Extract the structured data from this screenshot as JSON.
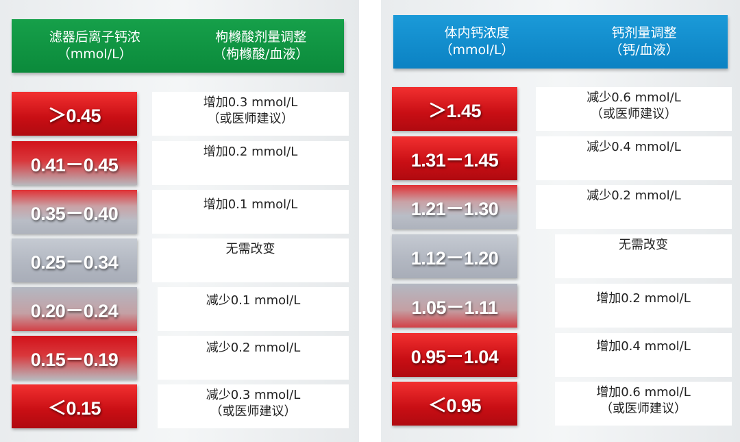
{
  "left_table": {
    "header": {
      "col1": [
        "滤器后离子钙浓",
        "（mmol/L）"
      ],
      "col2": [
        "枸橼酸剂量调整",
        "（枸橼酸/血液）"
      ]
    },
    "rows": [
      {
        "range": "＞0.45",
        "adjust": [
          "增加0.3 mmol/L",
          "（或医师建议）"
        ]
      },
      {
        "range": "0.41－0.45",
        "adjust": [
          "增加0.2 mmol/L",
          ""
        ]
      },
      {
        "range": "0.35－0.40",
        "adjust": [
          "增加0.1 mmol/L",
          ""
        ]
      },
      {
        "range": "0.25－0.34",
        "adjust": [
          "无需改变",
          ""
        ]
      },
      {
        "range": "0.20－0.24",
        "adjust": [
          "减少0.1 mmol/L",
          ""
        ]
      },
      {
        "range": "0.15－0.19",
        "adjust": [
          "减少0.2 mmol/L",
          ""
        ]
      },
      {
        "range": "＜0.15",
        "adjust": [
          "减少0.3 mmol/L",
          "（或医师建议）"
        ]
      }
    ]
  },
  "right_table": {
    "header": {
      "col1": [
        "体内钙浓度",
        "（mmol/L）"
      ],
      "col2": [
        "钙剂量调整",
        "（钙/血液）"
      ]
    },
    "rows": [
      {
        "range": "＞1.45",
        "adjust": [
          "减少0.6 mmol/L",
          "（或医师建议）"
        ]
      },
      {
        "range": "1.31－1.45",
        "adjust": [
          "减少0.4 mmol/L",
          ""
        ]
      },
      {
        "range": "1.21－1.30",
        "adjust": [
          "减少0.2 mmol/L",
          ""
        ]
      },
      {
        "range": "1.12－1.20",
        "adjust": [
          "无需改变",
          ""
        ]
      },
      {
        "range": "1.05－1.11",
        "adjust": [
          "增加0.2 mmol/L",
          ""
        ]
      },
      {
        "range": "0.95－1.04",
        "adjust": [
          "增加0.4 mmol/L",
          ""
        ]
      },
      {
        "range": "＜0.95",
        "adjust": [
          "增加0.6 mmol/L",
          "（或医师建议）"
        ]
      }
    ]
  },
  "colors": {
    "header_green": "#0b8a3b",
    "header_blue": "#0b82c3",
    "range_red": "#c80e14",
    "range_grey": "#b3b8c2"
  }
}
